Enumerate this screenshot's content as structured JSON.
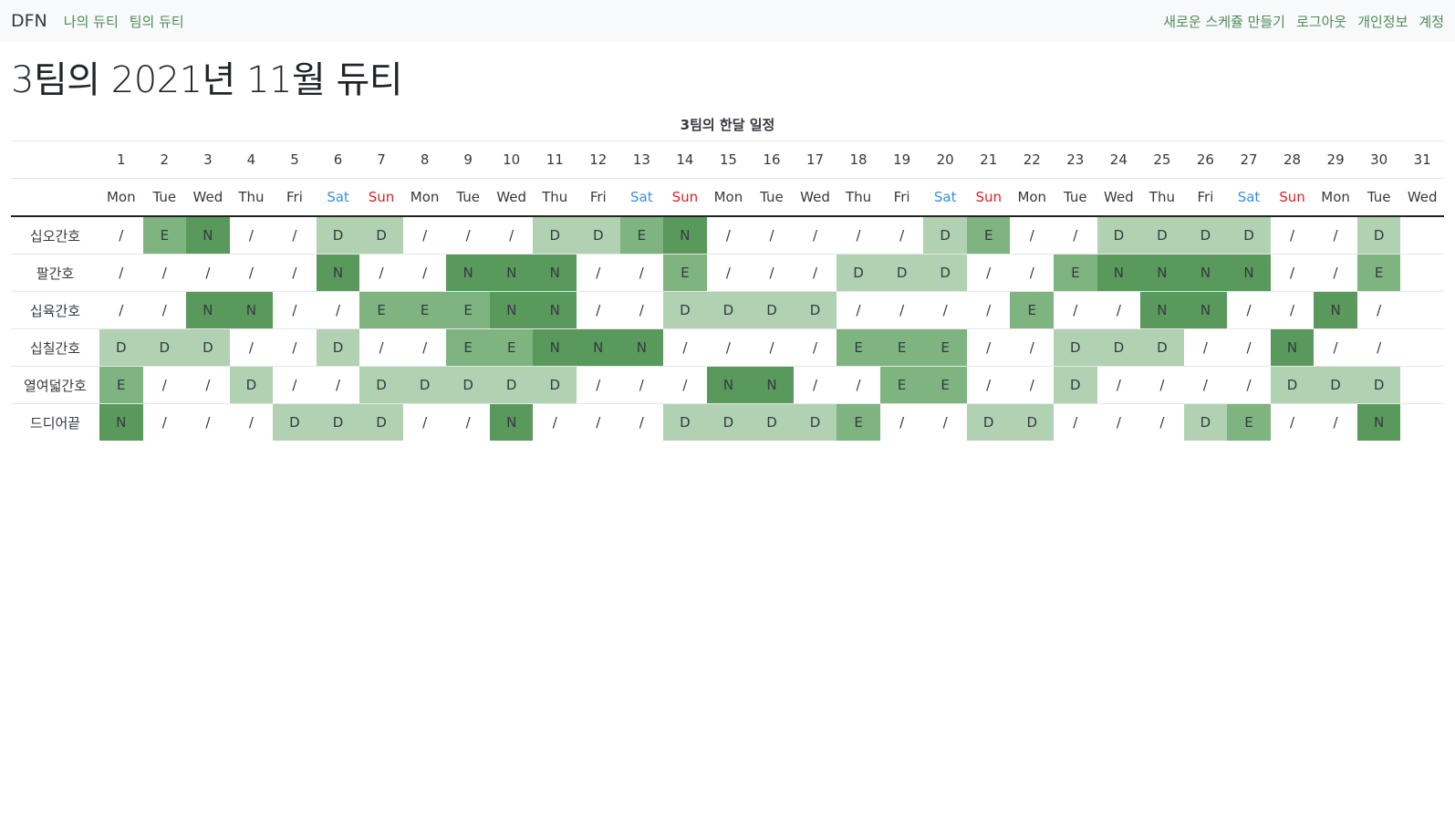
{
  "nav": {
    "brand": "DFN",
    "left_links": [
      "나의 듀티",
      "팀의 듀티"
    ],
    "right_links": [
      "새로운 스케쥴 만들기",
      "로그아웃",
      "개인정보",
      "계정"
    ]
  },
  "page_title": "3팀의 2021년 11월 듀티",
  "table": {
    "caption": "3팀의 한달 일정",
    "days": [
      {
        "date": "1",
        "weekday": "Mon"
      },
      {
        "date": "2",
        "weekday": "Tue"
      },
      {
        "date": "3",
        "weekday": "Wed"
      },
      {
        "date": "4",
        "weekday": "Thu"
      },
      {
        "date": "5",
        "weekday": "Fri"
      },
      {
        "date": "6",
        "weekday": "Sat"
      },
      {
        "date": "7",
        "weekday": "Sun"
      },
      {
        "date": "8",
        "weekday": "Mon"
      },
      {
        "date": "9",
        "weekday": "Tue"
      },
      {
        "date": "10",
        "weekday": "Wed"
      },
      {
        "date": "11",
        "weekday": "Thu"
      },
      {
        "date": "12",
        "weekday": "Fri"
      },
      {
        "date": "13",
        "weekday": "Sat"
      },
      {
        "date": "14",
        "weekday": "Sun"
      },
      {
        "date": "15",
        "weekday": "Mon"
      },
      {
        "date": "16",
        "weekday": "Tue"
      },
      {
        "date": "17",
        "weekday": "Wed"
      },
      {
        "date": "18",
        "weekday": "Thu"
      },
      {
        "date": "19",
        "weekday": "Fri"
      },
      {
        "date": "20",
        "weekday": "Sat"
      },
      {
        "date": "21",
        "weekday": "Sun"
      },
      {
        "date": "22",
        "weekday": "Mon"
      },
      {
        "date": "23",
        "weekday": "Tue"
      },
      {
        "date": "24",
        "weekday": "Wed"
      },
      {
        "date": "25",
        "weekday": "Thu"
      },
      {
        "date": "26",
        "weekday": "Fri"
      },
      {
        "date": "27",
        "weekday": "Sat"
      },
      {
        "date": "28",
        "weekday": "Sun"
      },
      {
        "date": "29",
        "weekday": "Mon"
      },
      {
        "date": "30",
        "weekday": "Tue"
      },
      {
        "date": "31",
        "weekday": "Wed"
      }
    ],
    "rows": [
      {
        "name": "십오간호",
        "duties": [
          "/",
          "E",
          "N",
          "/",
          "/",
          "D",
          "D",
          "/",
          "/",
          "/",
          "D",
          "D",
          "E",
          "N",
          "/",
          "/",
          "/",
          "/",
          "/",
          "D",
          "E",
          "/",
          "/",
          "D",
          "D",
          "D",
          "D",
          "/",
          "/",
          "D",
          ""
        ]
      },
      {
        "name": "팔간호",
        "duties": [
          "/",
          "/",
          "/",
          "/",
          "/",
          "N",
          "/",
          "/",
          "N",
          "N",
          "N",
          "/",
          "/",
          "E",
          "/",
          "/",
          "/",
          "D",
          "D",
          "D",
          "/",
          "/",
          "E",
          "N",
          "N",
          "N",
          "N",
          "/",
          "/",
          "E",
          ""
        ]
      },
      {
        "name": "십육간호",
        "duties": [
          "/",
          "/",
          "N",
          "N",
          "/",
          "/",
          "E",
          "E",
          "E",
          "N",
          "N",
          "/",
          "/",
          "D",
          "D",
          "D",
          "D",
          "/",
          "/",
          "/",
          "/",
          "E",
          "/",
          "/",
          "N",
          "N",
          "/",
          "/",
          "N",
          "/",
          ""
        ]
      },
      {
        "name": "십칠간호",
        "duties": [
          "D",
          "D",
          "D",
          "/",
          "/",
          "D",
          "/",
          "/",
          "E",
          "E",
          "N",
          "N",
          "N",
          "/",
          "/",
          "/",
          "/",
          "E",
          "E",
          "E",
          "/",
          "/",
          "D",
          "D",
          "D",
          "/",
          "/",
          "N",
          "/",
          "/",
          ""
        ]
      },
      {
        "name": "열여덟간호",
        "duties": [
          "E",
          "/",
          "/",
          "D",
          "/",
          "/",
          "D",
          "D",
          "D",
          "D",
          "D",
          "/",
          "/",
          "/",
          "N",
          "N",
          "/",
          "/",
          "E",
          "E",
          "/",
          "/",
          "D",
          "/",
          "/",
          "/",
          "/",
          "D",
          "D",
          "D",
          ""
        ]
      },
      {
        "name": "드디어끝",
        "duties": [
          "N",
          "/",
          "/",
          "/",
          "D",
          "D",
          "D",
          "/",
          "/",
          "N",
          "/",
          "/",
          "/",
          "D",
          "D",
          "D",
          "D",
          "E",
          "/",
          "/",
          "D",
          "D",
          "/",
          "/",
          "/",
          "D",
          "E",
          "/",
          "/",
          "N",
          ""
        ]
      }
    ]
  },
  "colors": {
    "D": "#b1d2b2",
    "E": "#7eb480",
    "N": "#5a995c",
    "saturday": "#3c8fd6",
    "sunday": "#d3252d",
    "nav_link": "#4e8a58"
  }
}
